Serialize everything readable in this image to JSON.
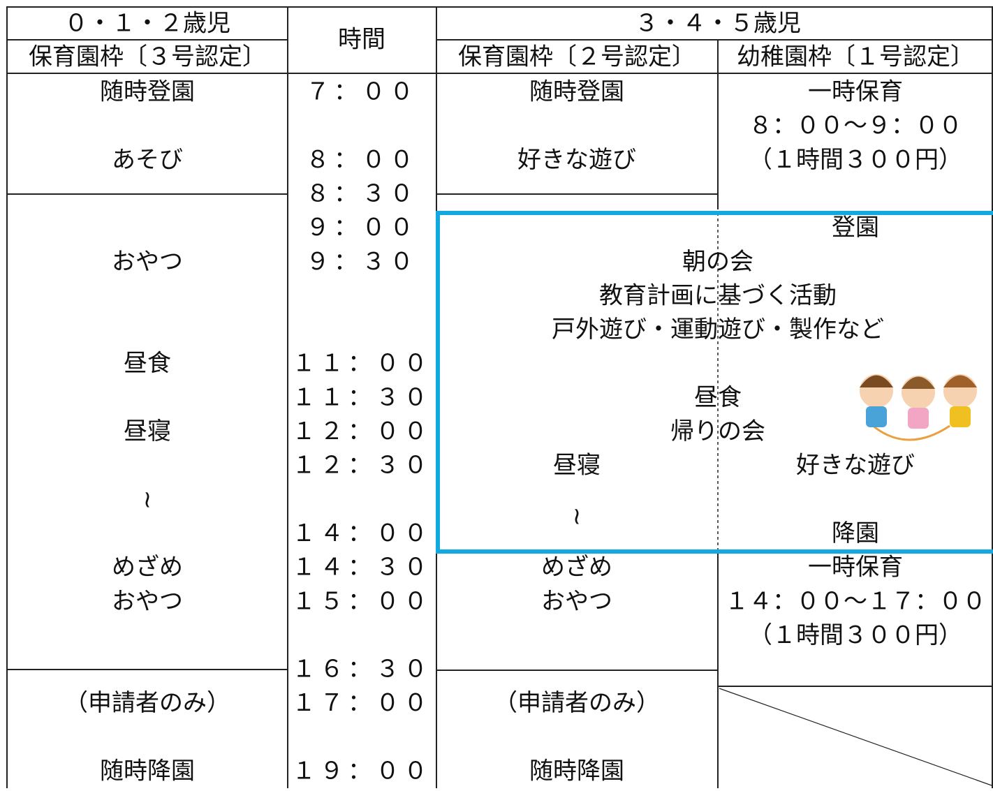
{
  "header": {
    "age_young": "０・１・２歳児",
    "time": "時間",
    "age_old": "３・４・５歳児",
    "nursery_3": "保育園枠〔３号認定〕",
    "nursery_2": "保育園枠〔２号認定〕",
    "kindergarten_1": "幼稚園枠〔１号認定〕"
  },
  "columns": {
    "young": [
      "随時登園",
      "あそび",
      "おやつ",
      "昼食",
      "昼寝",
      "≀",
      "めざめ",
      "おやつ",
      "（申請者のみ）",
      "随時降園"
    ],
    "times": [
      "７：００",
      "８：００",
      "８：３０",
      "９：００",
      "９：３０",
      "１１：００",
      "１１：３０",
      "１２：００",
      "１２：３０",
      "１４：００",
      "１４：３０",
      "１５：００",
      "１６：３０",
      "１７：００",
      "１９：００"
    ],
    "nursery": [
      "随時登園",
      "好きな遊び",
      "昼寝",
      "≀",
      "めざめ",
      "おやつ",
      "（申請者のみ）",
      "随時降園"
    ],
    "kindergarten": [
      "一時保育",
      "８：００～９：００",
      "（１時間３００円）",
      "登園",
      "好きな遊び",
      "降園",
      "一時保育",
      "１４：００～１７：００",
      "（１時間３００円）"
    ],
    "shared": [
      "朝の会",
      "教育計画に基づく活動",
      "戸外遊び・運動遊び・製作など",
      "昼食",
      "帰りの会"
    ]
  }
}
